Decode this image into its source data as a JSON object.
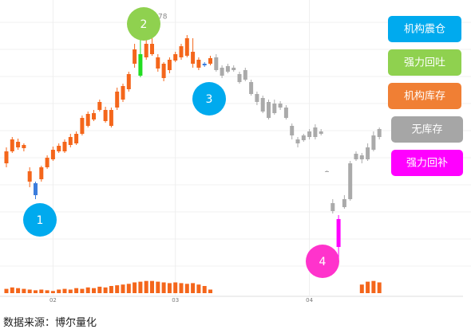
{
  "chart_data": {
    "type": "candlestick",
    "categories": [
      null,
      null,
      null,
      null,
      null,
      null,
      null,
      null,
      "02",
      null,
      null,
      null,
      null,
      null,
      null,
      null,
      null,
      null,
      null,
      null,
      null,
      null,
      null,
      null,
      null,
      null,
      null,
      null,
      null,
      "03",
      null,
      null,
      null,
      null,
      null,
      null,
      null,
      null,
      null,
      null,
      null,
      null,
      null,
      null,
      null,
      null,
      null,
      null,
      null,
      null,
      null,
      null,
      "04",
      null,
      null,
      null,
      null,
      null,
      null,
      null,
      null,
      null,
      null,
      null,
      null
    ],
    "open": [
      135,
      150,
      155,
      154,
      112,
      110,
      115,
      130,
      140,
      150,
      150,
      158,
      160,
      172,
      182,
      190,
      202,
      188,
      182,
      205,
      215,
      228,
      260,
      272,
      268,
      272,
      268,
      260,
      252,
      264,
      268,
      270,
      275,
      255,
      260,
      260,
      268,
      255,
      257,
      255,
      247,
      252,
      237,
      222,
      217,
      212,
      210,
      210,
      205,
      182,
      165,
      170,
      175,
      180,
      175,
      125,
      85,
      65,
      80,
      90,
      140,
      140,
      140,
      152,
      168
    ],
    "close": [
      150,
      165,
      162,
      158,
      125,
      95,
      130,
      142,
      152,
      157,
      162,
      168,
      172,
      192,
      197,
      198,
      212,
      202,
      202,
      225,
      232,
      247,
      278,
      245,
      285,
      285,
      254,
      242,
      265,
      272,
      282,
      292,
      260,
      265,
      258,
      267,
      252,
      245,
      250,
      252,
      237,
      240,
      222,
      212,
      200,
      192,
      198,
      205,
      192,
      170,
      160,
      164,
      168,
      168,
      172,
      125,
      75,
      30,
      90,
      135,
      147,
      145,
      155,
      170,
      178
    ],
    "high": [
      155,
      168,
      166,
      160,
      130,
      112,
      132,
      145,
      156,
      160,
      165,
      172,
      175,
      195,
      200,
      202,
      215,
      206,
      205,
      230,
      235,
      250,
      285,
      290,
      300,
      292,
      272,
      262,
      268,
      275,
      285,
      296,
      292,
      268,
      262,
      270,
      272,
      258,
      260,
      258,
      250,
      255,
      240,
      225,
      220,
      215,
      215,
      213,
      208,
      185,
      168,
      172,
      178,
      184,
      178,
      126,
      90,
      70,
      95,
      138,
      150,
      148,
      160,
      175,
      180
    ],
    "low": [
      130,
      148,
      152,
      150,
      105,
      90,
      112,
      128,
      138,
      148,
      148,
      155,
      158,
      170,
      180,
      188,
      200,
      186,
      180,
      202,
      212,
      225,
      255,
      243,
      265,
      270,
      250,
      238,
      248,
      262,
      265,
      268,
      255,
      252,
      256,
      258,
      250,
      242,
      248,
      250,
      235,
      238,
      220,
      208,
      198,
      190,
      196,
      202,
      190,
      165,
      155,
      162,
      165,
      165,
      170,
      124,
      72,
      15,
      78,
      88,
      138,
      135,
      138,
      150,
      165
    ],
    "colors": [
      "#f4661b",
      "#f4661b",
      "#f4661b",
      "#f4661b",
      "#f4661b",
      "#3b7ddd",
      "#f4661b",
      "#f4661b",
      "#f4661b",
      "#f4661b",
      "#f4661b",
      "#f4661b",
      "#f4661b",
      "#f4661b",
      "#f4661b",
      "#f4661b",
      "#f4661b",
      "#f4661b",
      "#f4661b",
      "#f4661b",
      "#f4661b",
      "#f4661b",
      "#f4661b",
      "#22dd22",
      "#f4661b",
      "#f4661b",
      "#f4661b",
      "#f4661b",
      "#f4661b",
      "#f4661b",
      "#f4661b",
      "#f4661b",
      "#f4661b",
      "#f4661b",
      "#3b7ddd",
      "#f4661b",
      "#aaaaaa",
      "#aaaaaa",
      "#aaaaaa",
      "#aaaaaa",
      "#aaaaaa",
      "#aaaaaa",
      "#aaaaaa",
      "#aaaaaa",
      "#aaaaaa",
      "#aaaaaa",
      "#aaaaaa",
      "#aaaaaa",
      "#aaaaaa",
      "#aaaaaa",
      "#aaaaaa",
      "#aaaaaa",
      "#aaaaaa",
      "#aaaaaa",
      "#aaaaaa",
      "#aaaaaa",
      "#aaaaaa",
      "#ff00ff",
      "#aaaaaa",
      "#aaaaaa",
      "#aaaaaa",
      "#aaaaaa",
      "#aaaaaa",
      "#aaaaaa",
      "#aaaaaa"
    ],
    "ylim": [
      0,
      340
    ],
    "volume": [
      6,
      8,
      7,
      6,
      5,
      4,
      5,
      4,
      3,
      5,
      6,
      5,
      7,
      6,
      8,
      7,
      9,
      8,
      10,
      11,
      12,
      13,
      15,
      16,
      17,
      17,
      16,
      15,
      14,
      15,
      14,
      13,
      14,
      12,
      10,
      5,
      null,
      null,
      null,
      null,
      null,
      null,
      null,
      null,
      null,
      null,
      null,
      null,
      null,
      null,
      null,
      null,
      null,
      null,
      null,
      null,
      null,
      null,
      null,
      null,
      null,
      12,
      16,
      17,
      15
    ],
    "volume_ylim": [
      0,
      20
    ],
    "volume_color": "#f4661b",
    "price_note": "78",
    "annotations": [
      {
        "text": "1",
        "color": "#00aaee"
      },
      {
        "text": "2",
        "color": "#8fd14f"
      },
      {
        "text": "3",
        "color": "#00aaee"
      },
      {
        "text": "4",
        "color": "#ff33cc"
      }
    ],
    "buttons": [
      {
        "text": "机构震仓",
        "color": "#00aaee"
      },
      {
        "text": "强力回吐",
        "color": "#8fd14f"
      },
      {
        "text": "机构库存",
        "color": "#f07f34"
      },
      {
        "text": "无库存",
        "color": "#a6a6a6"
      },
      {
        "text": "强力回补",
        "color": "#ff00ff"
      }
    ],
    "source": "数据来源：博尔量化"
  }
}
